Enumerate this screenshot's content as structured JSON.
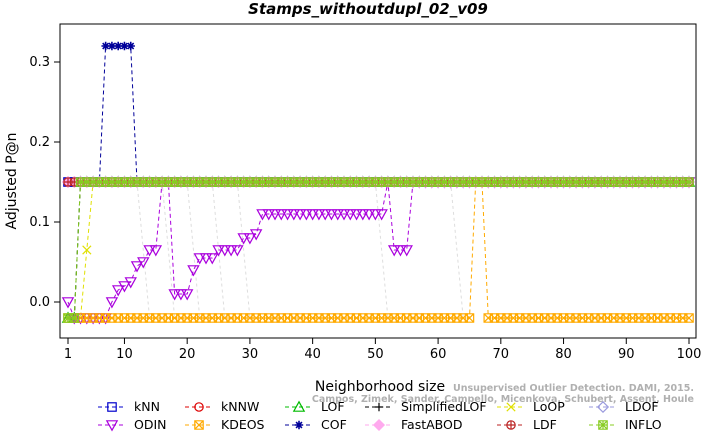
{
  "chart_data": {
    "type": "line",
    "title": "Stamps_withoutdupl_02_v09",
    "xlabel": "Neighborhood size",
    "ylabel": "Adjusted P@n",
    "xlim": [
      1,
      100
    ],
    "ylim": [
      -0.04,
      0.34
    ],
    "xticks": [
      1,
      10,
      20,
      30,
      40,
      50,
      60,
      70,
      80,
      90,
      100
    ],
    "yticks": [
      0.0,
      0.1,
      0.2,
      0.3
    ],
    "ytick_labels": [
      "0.0",
      "0.1",
      "0.2",
      "0.3"
    ],
    "grid": false,
    "legend_position": "bottom",
    "watermark_lines": [
      "Unsupervised Outlier Detection. DAMI, 2015.",
      "Campos, Zimek, Sander, Campello, Micenkova, Schubert, Assent, Houle"
    ],
    "series": [
      {
        "name": "kNN",
        "color": "#0000cc",
        "marker": "square",
        "dash": "4,3",
        "segments": [
          {
            "x": [
              1,
              100
            ],
            "y": [
              0.15,
              0.15
            ]
          }
        ]
      },
      {
        "name": "kNNW",
        "color": "#dd0000",
        "marker": "circle",
        "dash": "4,3",
        "segments": [
          {
            "x": [
              1,
              100
            ],
            "y": [
              0.15,
              0.15
            ]
          }
        ]
      },
      {
        "name": "LOF",
        "color": "#00bb00",
        "marker": "triangle-up",
        "dash": "4,3",
        "segments": [
          {
            "x": [
              1,
              2,
              3,
              4,
              100
            ],
            "y": [
              -0.02,
              -0.02,
              0.15,
              0.15,
              0.15
            ]
          }
        ]
      },
      {
        "name": "SimplifiedLOF",
        "color": "#000000",
        "marker": "plus",
        "dash": "4,3",
        "segments": [
          {
            "x": [
              1,
              2,
              3,
              100
            ],
            "y": [
              -0.02,
              -0.02,
              0.15,
              0.15
            ]
          }
        ]
      },
      {
        "name": "LoOP",
        "color": "#e0e000",
        "marker": "x",
        "dash": "4,3",
        "segments": [
          {
            "x": [
              1,
              3,
              5,
              100
            ],
            "y": [
              -0.02,
              -0.02,
              0.15,
              0.15
            ]
          }
        ]
      },
      {
        "name": "LDOF",
        "color": "#9999dd",
        "marker": "diamond",
        "dash": "4,3",
        "segments": [
          {
            "x": [
              1,
              100
            ],
            "y": [
              0.15,
              0.15
            ]
          }
        ]
      },
      {
        "name": "ODIN",
        "color": "#aa00dd",
        "marker": "triangle-down",
        "dash": "4,3",
        "segments": [
          {
            "x": [
              1,
              2,
              3,
              4,
              5,
              6,
              7,
              8,
              9,
              10,
              11,
              12,
              13,
              14,
              15,
              16,
              17,
              18,
              19,
              20,
              21,
              22,
              23,
              24,
              25,
              26,
              27,
              28,
              29,
              30,
              31,
              32,
              33,
              34,
              35,
              36,
              37,
              38,
              39,
              40,
              41,
              42,
              43,
              44,
              45,
              46,
              47,
              48,
              49,
              50,
              51,
              52,
              53,
              54,
              55,
              56,
              100
            ],
            "y": [
              0.0,
              -0.02,
              -0.02,
              -0.02,
              -0.02,
              -0.02,
              -0.02,
              0.0,
              0.015,
              0.02,
              0.025,
              0.045,
              0.05,
              0.065,
              0.065,
              0.15,
              0.15,
              0.01,
              0.01,
              0.01,
              0.04,
              0.055,
              0.055,
              0.055,
              0.065,
              0.065,
              0.065,
              0.065,
              0.08,
              0.08,
              0.085,
              0.11,
              0.11,
              0.11,
              0.11,
              0.11,
              0.11,
              0.11,
              0.11,
              0.11,
              0.11,
              0.11,
              0.11,
              0.11,
              0.11,
              0.11,
              0.11,
              0.11,
              0.11,
              0.11,
              0.11,
              0.15,
              0.065,
              0.065,
              0.065,
              0.15,
              0.15
            ]
          }
        ]
      },
      {
        "name": "KDEOS",
        "color": "#ffaa00",
        "marker": "square-x",
        "dash": "4,3",
        "segments": [
          {
            "x": [
              1,
              65,
              66,
              67,
              68,
              100
            ],
            "y": [
              -0.02,
              -0.02,
              0.15,
              0.15,
              -0.02,
              -0.02
            ]
          }
        ]
      },
      {
        "name": "COF",
        "color": "#000099",
        "marker": "asterisk",
        "dash": "4,3",
        "segments": [
          {
            "x": [
              1,
              5,
              6,
              7,
              8,
              9,
              10,
              11,
              12,
              100
            ],
            "y": [
              0.15,
              0.15,
              0.15,
              0.32,
              0.32,
              0.32,
              0.32,
              0.32,
              0.15,
              0.15
            ]
          }
        ]
      },
      {
        "name": "FastABOD",
        "color": "#ffaaee",
        "marker": "diamond-filled",
        "dash": "4,3",
        "segments": [
          {
            "x": [
              1,
              100
            ],
            "y": [
              0.15,
              0.15
            ]
          }
        ]
      },
      {
        "name": "LDF",
        "color": "#bb2222",
        "marker": "circle-plus",
        "dash": "4,3",
        "segments": [
          {
            "x": [
              1,
              100
            ],
            "y": [
              0.15,
              0.15
            ]
          }
        ]
      },
      {
        "name": "INFLO",
        "color": "#88cc22",
        "marker": "square-star",
        "dash": "4,3",
        "segments": [
          {
            "x": [
              1,
              2,
              3,
              4,
              100
            ],
            "y": [
              -0.02,
              -0.02,
              0.15,
              0.15,
              0.15
            ]
          }
        ]
      }
    ],
    "faint_lines": [
      {
        "x": [
          12,
          16,
          20,
          24,
          28,
          50,
          62
        ],
        "color": "#dddddd"
      }
    ]
  }
}
